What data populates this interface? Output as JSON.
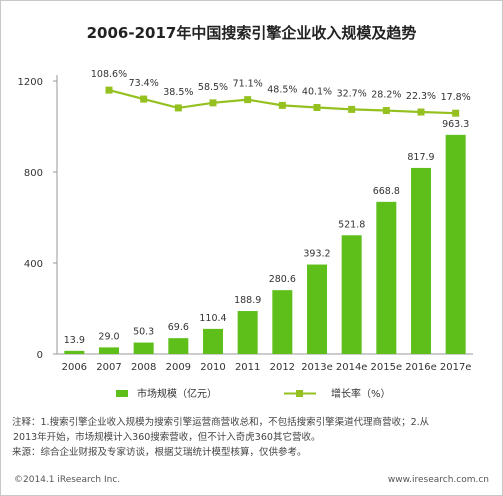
{
  "chart_data": {
    "type": "bar",
    "title": "2006-2017年中国搜索引擎企业收入规模及趋势",
    "categories": [
      "2006",
      "2007",
      "2008",
      "2009",
      "2010",
      "2011",
      "2012",
      "2013e",
      "2014e",
      "2015e",
      "2016e",
      "2017e"
    ],
    "series": [
      {
        "name": "市场规模（亿元）",
        "kind": "bar",
        "values": [
          13.9,
          29.0,
          50.3,
          69.6,
          110.4,
          188.9,
          280.6,
          393.2,
          521.8,
          668.8,
          817.9,
          963.3
        ],
        "labels": [
          "13.9",
          "29.0",
          "50.3",
          "69.6",
          "110.4",
          "188.9",
          "280.6",
          "393.2",
          "521.8",
          "668.8",
          "817.9",
          "963.3"
        ]
      },
      {
        "name": "增长率（%）",
        "kind": "line",
        "values": [
          null,
          108.6,
          73.4,
          38.5,
          58.5,
          71.1,
          48.5,
          40.1,
          32.7,
          28.2,
          22.3,
          17.8
        ],
        "labels": [
          "",
          "108.6%",
          "73.4%",
          "38.5%",
          "58.5%",
          "71.1%",
          "48.5%",
          "40.1%",
          "32.7%",
          "28.2%",
          "22.3%",
          "17.8%"
        ]
      }
    ],
    "yticks": [
      "0",
      "400",
      "800",
      "1200"
    ],
    "ylim": [
      0,
      1200
    ],
    "grid": false,
    "legend": "bottom",
    "colors": {
      "bar": "#5fbf1a",
      "line": "#94c11f"
    }
  },
  "notes": {
    "line1": "注释：1.搜索引擎企业收入规模为搜索引擎运营商营收总和，不包括搜索引擎渠道代理商营收；2.从",
    "line2": "2013年开始，市场规模计入360搜索营收，但不计入奇虎360其它营收。",
    "line3": "来源：综合企业财报及专家访谈，根据艾瑞统计模型核算，仅供参考。"
  },
  "footer": {
    "copyright": "©2014.1 iResearch Inc.",
    "site": "www.iresearch.com.cn"
  }
}
